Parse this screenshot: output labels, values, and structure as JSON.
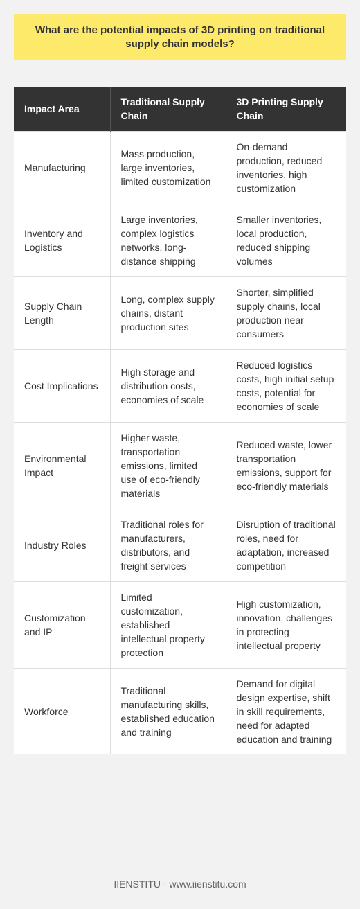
{
  "title": "What are the potential impacts of 3D printing on traditional supply chain models?",
  "table": {
    "headers": [
      "Impact Area",
      "Traditional Supply Chain",
      "3D Printing Supply Chain"
    ],
    "rows": [
      [
        "Manufacturing",
        "Mass production, large inventories, limited customization",
        "On-demand production, reduced inventories, high customization"
      ],
      [
        "Inventory and Logistics",
        "Large inventories, complex logistics networks, long-distance shipping",
        "Smaller inventories, local production, reduced shipping volumes"
      ],
      [
        "Supply Chain Length",
        "Long, complex supply chains, distant production sites",
        "Shorter, simplified supply chains, local production near consumers"
      ],
      [
        "Cost Implications",
        "High storage and distribution costs, economies of scale",
        "Reduced logistics costs, high initial setup costs, potential for economies of scale"
      ],
      [
        "Environmental Impact",
        "Higher waste, transportation emissions, limited use of eco-friendly materials",
        "Reduced waste, lower transportation emissions, support for eco-friendly materials"
      ],
      [
        "Industry Roles",
        "Traditional roles for manufacturers, distributors, and freight services",
        "Disruption of traditional roles, need for adaptation, increased competition"
      ],
      [
        "Customization and IP",
        "Limited customization, established intellectual property protection",
        "High customization, innovation, challenges in protecting intellectual property"
      ],
      [
        "Workforce",
        "Traditional manufacturing skills, established education and training",
        "Demand for digital design expertise, shift in skill requirements, need for adapted education and training"
      ]
    ]
  },
  "footer": "IIENSTITU - www.iienstitu.com",
  "colors": {
    "title_background": "#fde96a",
    "header_background": "#333333",
    "page_background": "#f2f2f2"
  }
}
